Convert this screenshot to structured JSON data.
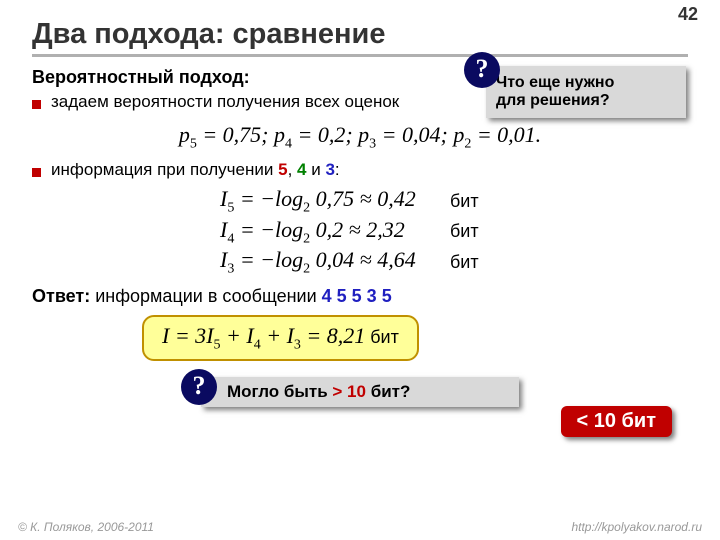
{
  "page": {
    "number": "42"
  },
  "title": "Два подхода: сравнение",
  "subtitle": "Вероятностный подход:",
  "bullets": {
    "b1": "задаем вероятности получения всех оценок",
    "b2_prefix": "информация при получении ",
    "b2_a": "5",
    "b2_comma1": ", ",
    "b2_b": "4",
    "b2_and": " и ",
    "b2_c": "3",
    "b2_suffix": ":"
  },
  "callout": {
    "line1": "Что еще нужно",
    "line2": "для решения?",
    "badge": "?"
  },
  "prob_formula": {
    "p5": "p",
    "s5": "5",
    "eq5": " = 0,75;   ",
    "p4": "p",
    "s4": "4",
    "eq4": " = 0,2;   ",
    "p3": "p",
    "s3": "3",
    "eq3": " = 0,04;   ",
    "p2": "p",
    "s2": "2",
    "eq2": " = 0,01."
  },
  "info": {
    "rows": [
      {
        "I": "I",
        "sub": "5",
        "expr": " = −log",
        "base": "2",
        "val": " 0,75 ≈ 0,42",
        "unit": "бит"
      },
      {
        "I": "I",
        "sub": "4",
        "expr": " = −log",
        "base": "2",
        "val": " 0,2 ≈ 2,32",
        "unit": "бит"
      },
      {
        "I": "I",
        "sub": "3",
        "expr": " = −log",
        "base": "2",
        "val": " 0,04 ≈ 4,64",
        "unit": "бит"
      }
    ]
  },
  "answer": {
    "label": "Ответ:",
    "text": " информации в сообщении  ",
    "sequence": "4 5 5 3 5"
  },
  "yellow": {
    "I": "I",
    "eq": " = 3",
    "I5": "I",
    "s5": "5",
    "plus1": " + ",
    "I4": "I",
    "s4": "4",
    "plus2": " + ",
    "I3": "I",
    "s3": "3",
    "res": " = 8,21",
    "unit": " бит"
  },
  "red_pill": "< 10 бит",
  "bottom": {
    "badge": "?",
    "prefix": "Могло быть ",
    "gt": "> 10",
    "suffix": " бит?"
  },
  "footer": {
    "left": "© К. Поляков, 2006-2011",
    "right": "http://kpolyakov.narod.ru"
  },
  "colors": {
    "accent_red": "#c00000",
    "accent_green": "#008000",
    "accent_blue": "#2020c0",
    "badge_bg": "#0a0a60",
    "callout_bg": "#d9d9d9",
    "yellow_bg": "#ffff99",
    "yellow_border": "#c09000"
  }
}
